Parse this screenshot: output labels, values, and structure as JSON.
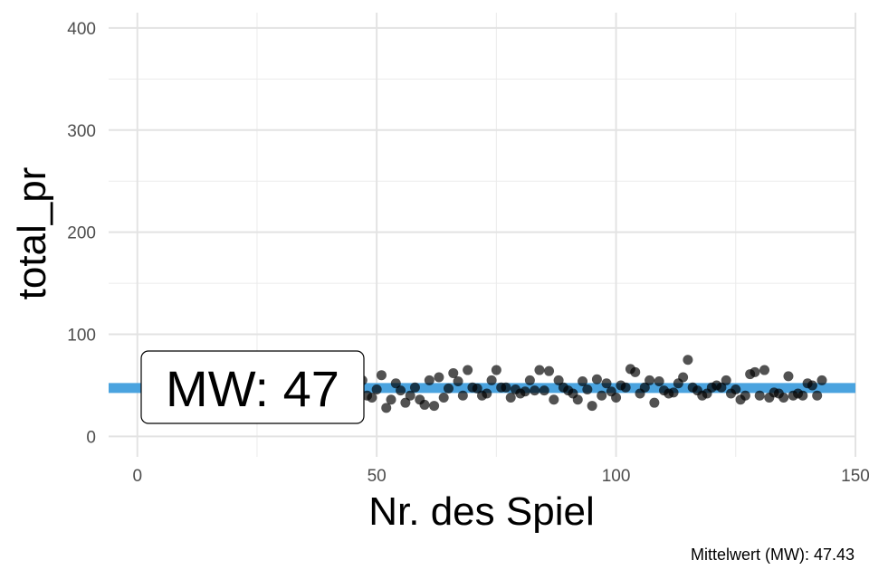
{
  "chart_data": {
    "type": "scatter",
    "xlabel": "Nr. des Spiel",
    "ylabel": "total_pr",
    "xlim": [
      -6,
      150
    ],
    "ylim": [
      -20,
      415
    ],
    "x_ticks": [
      0,
      50,
      100,
      150
    ],
    "y_ticks": [
      0,
      100,
      200,
      300,
      400
    ],
    "x_tick_labels": [
      "0",
      "50",
      "100",
      "150"
    ],
    "y_tick_labels": [
      "0",
      "100",
      "200",
      "300",
      "400"
    ],
    "grid": true,
    "mean_line": {
      "value": 47.43,
      "color": "#4aa3df"
    },
    "annotation": {
      "label": "MW: 47",
      "x": 2,
      "y": 47
    },
    "caption": "Mittelwert (MW): 47.43",
    "point_color": "#000000",
    "x": [
      47,
      48,
      49,
      50,
      51,
      52,
      53,
      54,
      55,
      56,
      57,
      58,
      59,
      60,
      61,
      62,
      63,
      64,
      65,
      66,
      67,
      68,
      69,
      70,
      71,
      72,
      73,
      74,
      75,
      76,
      77,
      78,
      79,
      80,
      81,
      82,
      83,
      84,
      85,
      86,
      87,
      88,
      89,
      90,
      91,
      92,
      93,
      94,
      95,
      96,
      97,
      98,
      99,
      100,
      101,
      102,
      103,
      104,
      105,
      106,
      107,
      108,
      109,
      110,
      111,
      112,
      113,
      114,
      115,
      116,
      117,
      118,
      119,
      120,
      121,
      122,
      123,
      124,
      125,
      126,
      127,
      128,
      129,
      130,
      131,
      132,
      133,
      134,
      135,
      136,
      137,
      138,
      139,
      140,
      141,
      142,
      143
    ],
    "y": [
      55,
      40,
      38,
      46,
      60,
      28,
      36,
      52,
      45,
      33,
      40,
      48,
      36,
      31,
      55,
      30,
      58,
      38,
      47,
      62,
      54,
      40,
      65,
      48,
      47,
      40,
      42,
      55,
      65,
      48,
      48,
      38,
      46,
      42,
      44,
      55,
      45,
      65,
      45,
      64,
      36,
      55,
      48,
      45,
      42,
      36,
      54,
      46,
      30,
      56,
      40,
      52,
      44,
      38,
      50,
      48,
      66,
      63,
      42,
      48,
      55,
      33,
      54,
      45,
      42,
      43,
      52,
      58,
      75,
      48,
      45,
      40,
      42,
      48,
      50,
      48,
      55,
      42,
      46,
      36,
      40,
      61,
      63,
      40,
      65,
      38,
      43,
      42,
      38,
      59,
      40,
      42,
      40,
      52,
      50,
      40,
      55
    ]
  }
}
